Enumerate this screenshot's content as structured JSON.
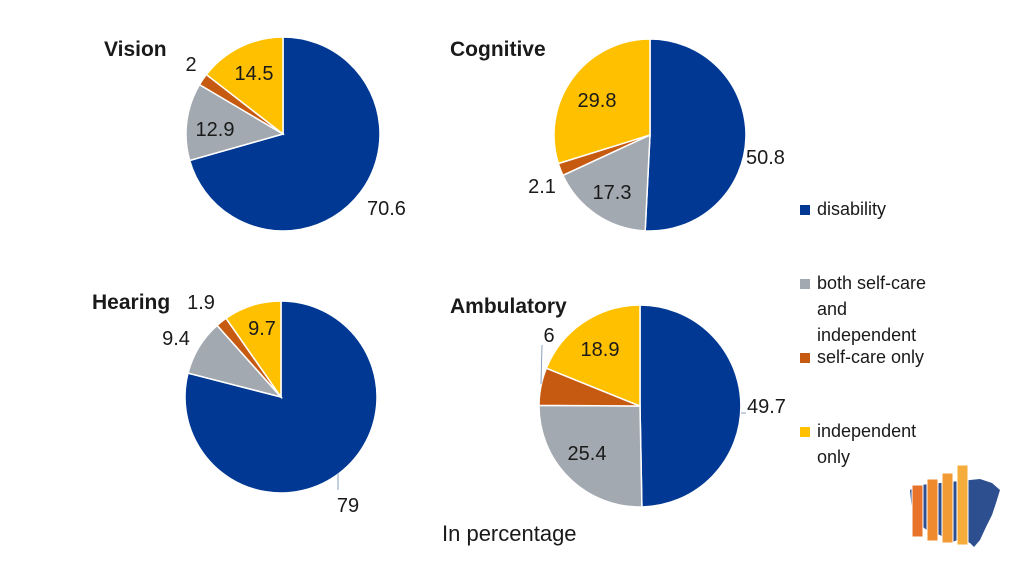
{
  "chart_data": [
    {
      "type": "pie",
      "title": "Vision",
      "categories": [
        "disability",
        "both self-care and independent",
        "self-care only",
        "independent only"
      ],
      "values": [
        70.6,
        12.9,
        2,
        14.5
      ],
      "value_labels": [
        "70.6",
        "12.9",
        "2",
        "14.5"
      ]
    },
    {
      "type": "pie",
      "title": "Cognitive",
      "categories": [
        "disability",
        "both self-care and independent",
        "self-care only",
        "independent only"
      ],
      "values": [
        50.8,
        17.3,
        2.1,
        29.8
      ],
      "value_labels": [
        "50.8",
        "17.3",
        "2.1",
        "29.8"
      ]
    },
    {
      "type": "pie",
      "title": "Hearing",
      "categories": [
        "disability",
        "both self-care and independent",
        "self-care only",
        "independent only"
      ],
      "values": [
        79,
        9.4,
        1.9,
        9.7
      ],
      "value_labels": [
        "79",
        "9.4",
        "1.9",
        "9.7"
      ]
    },
    {
      "type": "pie",
      "title": "Ambulatory",
      "categories": [
        "disability",
        "both self-care and independent",
        "self-care only",
        "independent only"
      ],
      "values": [
        49.7,
        25.4,
        6,
        18.9
      ],
      "value_labels": [
        "49.7",
        "25.4",
        "6",
        "18.9"
      ]
    }
  ],
  "legend": {
    "placement": "right",
    "items": [
      {
        "label_lines": [
          "disability"
        ],
        "color": "#003893"
      },
      {
        "label_lines": [
          "both self-care",
          "and",
          "independent"
        ],
        "color": "#A3A9B0"
      },
      {
        "label_lines": [
          "self-care only"
        ],
        "color": "#C65A11"
      },
      {
        "label_lines": [
          "independent",
          "only"
        ],
        "color": "#FFC000"
      }
    ]
  },
  "colors": [
    "#003893",
    "#A3A9B0",
    "#C65A11",
    "#FFC000"
  ],
  "footnote": "In percentage",
  "logo": {
    "icon": "us-map-bar-chart-logo"
  }
}
